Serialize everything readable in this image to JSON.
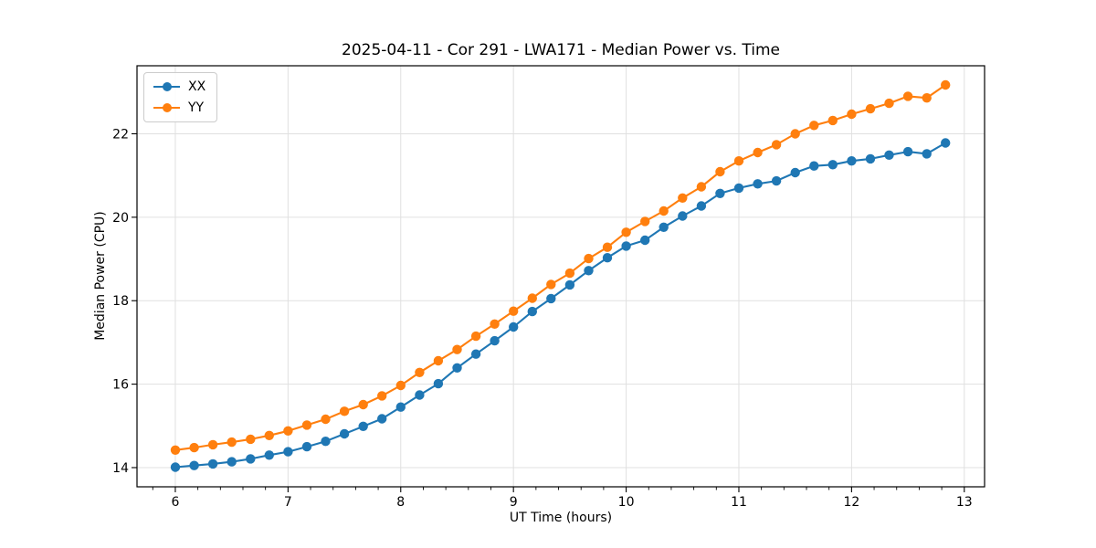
{
  "chart_data": {
    "type": "line",
    "title": "2025-04-11 - Cor 291 - LWA171 - Median Power vs. Time",
    "xlabel": "UT Time (hours)",
    "ylabel": "Median Power (CPU)",
    "x": [
      6.0,
      6.167,
      6.333,
      6.5,
      6.667,
      6.833,
      7.0,
      7.167,
      7.333,
      7.5,
      7.667,
      7.833,
      8.0,
      8.167,
      8.333,
      8.5,
      8.667,
      8.833,
      9.0,
      9.167,
      9.333,
      9.5,
      9.667,
      9.833,
      10.0,
      10.167,
      10.333,
      10.5,
      10.667,
      10.833,
      11.0,
      11.167,
      11.333,
      11.5,
      11.667,
      11.833,
      12.0,
      12.167,
      12.333,
      12.5,
      12.667,
      12.833
    ],
    "series": [
      {
        "name": "XX",
        "color": "#1f77b4",
        "marker": "circle",
        "values": [
          14.01,
          14.05,
          14.09,
          14.14,
          14.21,
          14.3,
          14.38,
          14.5,
          14.63,
          14.81,
          14.99,
          15.17,
          15.45,
          15.74,
          16.01,
          16.39,
          16.72,
          17.04,
          17.37,
          17.74,
          18.05,
          18.38,
          18.72,
          19.03,
          19.31,
          19.45,
          19.76,
          20.03,
          20.27,
          20.57,
          20.7,
          20.8,
          20.87,
          21.07,
          21.23,
          21.26,
          21.35,
          21.4,
          21.49,
          21.57,
          21.52,
          21.78
        ]
      },
      {
        "name": "YY",
        "color": "#ff7f0e",
        "marker": "circle",
        "values": [
          14.42,
          14.48,
          14.55,
          14.61,
          14.68,
          14.77,
          14.88,
          15.02,
          15.16,
          15.35,
          15.51,
          15.72,
          15.97,
          16.28,
          16.56,
          16.83,
          17.15,
          17.44,
          17.75,
          18.06,
          18.39,
          18.66,
          19.01,
          19.28,
          19.64,
          19.9,
          20.15,
          20.46,
          20.73,
          21.09,
          21.35,
          21.55,
          21.74,
          22.0,
          22.2,
          22.32,
          22.47,
          22.6,
          22.73,
          22.9,
          22.86,
          23.17
        ]
      }
    ],
    "xlim": [
      5.66,
      13.18
    ],
    "ylim": [
      13.54,
      23.63
    ],
    "xticks": [
      "6",
      "7",
      "8",
      "9",
      "10",
      "11",
      "12",
      "13"
    ],
    "yticks": [
      "14",
      "16",
      "18",
      "20",
      "22"
    ],
    "x_minor_tick_step": 0.2,
    "grid": true,
    "grid_color": "#e0e0e0",
    "legend_position": "upper-left"
  }
}
